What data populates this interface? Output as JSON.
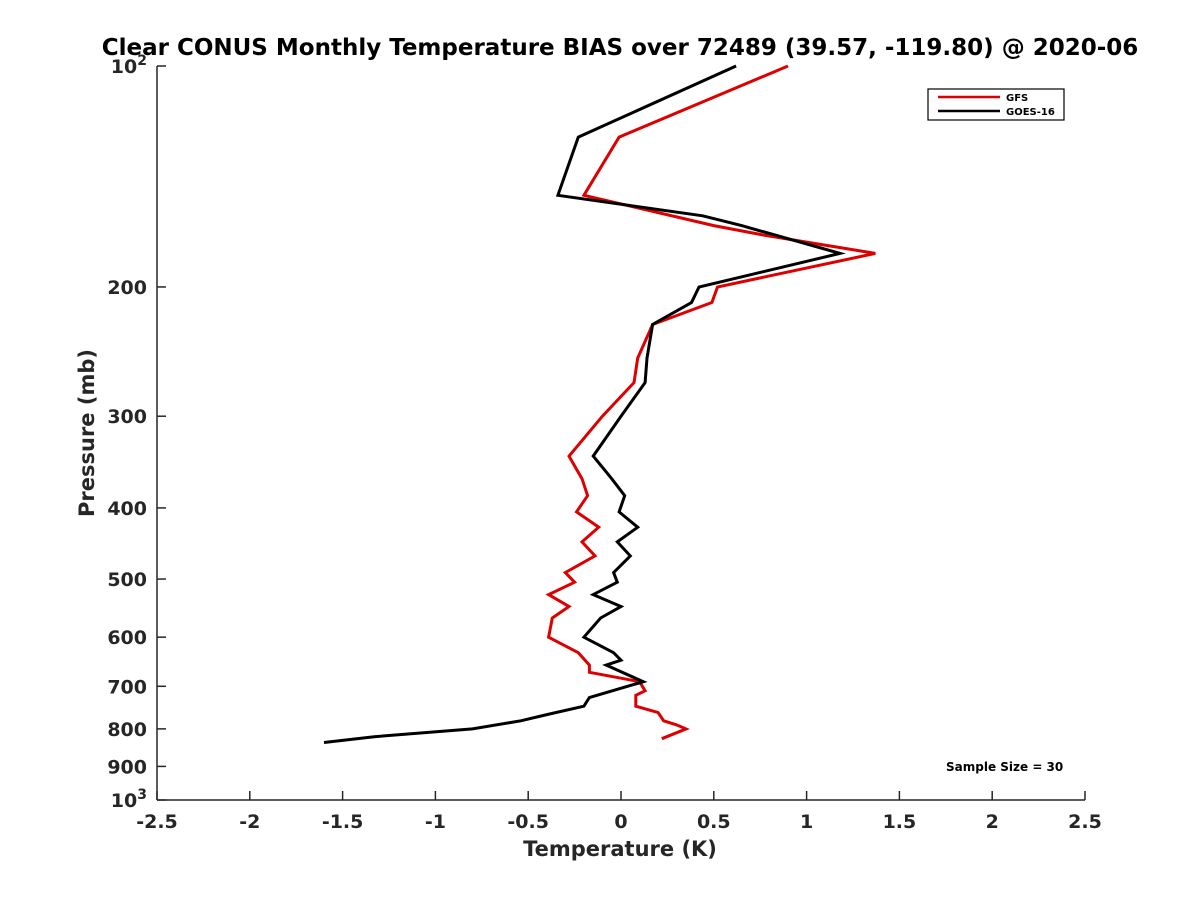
{
  "chart_data": {
    "type": "line",
    "title": "Clear CONUS Monthly Temperature BIAS over 72489 (39.57, -119.80) @ 2020-06",
    "xlabel": "Temperature (K)",
    "ylabel": "Pressure (mb)",
    "xlim": [
      -2.5,
      2.5
    ],
    "ylim": [
      100,
      1000
    ],
    "y_scale": "log",
    "y_reversed": true,
    "x_ticks": [
      "-2.5",
      "-2",
      "-1.5",
      "-1",
      "-0.5",
      "0",
      "0.5",
      "1",
      "1.5",
      "2",
      "2.5"
    ],
    "x_tick_values": [
      -2.5,
      -2,
      -1.5,
      -1,
      -0.5,
      0,
      0.5,
      1,
      1.5,
      2,
      2.5
    ],
    "y_ticks": [
      {
        "value": 100,
        "base": "10",
        "exp": "2"
      },
      {
        "value": 200,
        "label": "200"
      },
      {
        "value": 300,
        "label": "300"
      },
      {
        "value": 400,
        "label": "400"
      },
      {
        "value": 500,
        "label": "500"
      },
      {
        "value": 600,
        "label": "600"
      },
      {
        "value": 700,
        "label": "700"
      },
      {
        "value": 800,
        "label": "800"
      },
      {
        "value": 900,
        "label": "900"
      },
      {
        "value": 1000,
        "base": "10",
        "exp": "3"
      }
    ],
    "legend_position": "top-right",
    "annotation": "Sample Size = 30",
    "series": [
      {
        "name": "GFS",
        "color": "#dd0000",
        "points": [
          [
            0.9,
            100
          ],
          [
            -0.01,
            125
          ],
          [
            -0.2,
            150
          ],
          [
            0.5,
            165
          ],
          [
            0.77,
            170
          ],
          [
            1.37,
            180
          ],
          [
            0.52,
            200
          ],
          [
            0.49,
            210
          ],
          [
            0.17,
            225
          ],
          [
            0.09,
            250
          ],
          [
            0.07,
            270
          ],
          [
            -0.1,
            300
          ],
          [
            -0.28,
            340
          ],
          [
            -0.21,
            365
          ],
          [
            -0.18,
            385
          ],
          [
            -0.24,
            405
          ],
          [
            -0.12,
            425
          ],
          [
            -0.21,
            445
          ],
          [
            -0.14,
            465
          ],
          [
            -0.3,
            490
          ],
          [
            -0.25,
            505
          ],
          [
            -0.39,
            525
          ],
          [
            -0.28,
            545
          ],
          [
            -0.37,
            565
          ],
          [
            -0.39,
            600
          ],
          [
            -0.23,
            630
          ],
          [
            -0.17,
            655
          ],
          [
            -0.17,
            670
          ],
          [
            0.1,
            690
          ],
          [
            0.13,
            710
          ],
          [
            0.08,
            720
          ],
          [
            0.08,
            745
          ],
          [
            0.2,
            760
          ],
          [
            0.23,
            780
          ],
          [
            0.3,
            790
          ],
          [
            0.35,
            800
          ],
          [
            0.22,
            825
          ]
        ]
      },
      {
        "name": "GOES-16",
        "color": "#000000",
        "points": [
          [
            0.62,
            100
          ],
          [
            -0.23,
            125
          ],
          [
            -0.34,
            150
          ],
          [
            0.44,
            160
          ],
          [
            0.65,
            165
          ],
          [
            1.18,
            180
          ],
          [
            0.42,
            200
          ],
          [
            0.38,
            210
          ],
          [
            0.17,
            225
          ],
          [
            0.14,
            250
          ],
          [
            0.13,
            270
          ],
          [
            0.0,
            300
          ],
          [
            -0.15,
            340
          ],
          [
            -0.05,
            365
          ],
          [
            0.02,
            385
          ],
          [
            -0.01,
            405
          ],
          [
            0.09,
            425
          ],
          [
            -0.02,
            445
          ],
          [
            0.05,
            465
          ],
          [
            -0.04,
            490
          ],
          [
            -0.02,
            505
          ],
          [
            -0.15,
            525
          ],
          [
            0.0,
            545
          ],
          [
            -0.11,
            565
          ],
          [
            -0.2,
            600
          ],
          [
            -0.04,
            630
          ],
          [
            0.0,
            645
          ],
          [
            -0.08,
            655
          ],
          [
            0.12,
            690
          ],
          [
            -0.17,
            725
          ],
          [
            -0.2,
            745
          ],
          [
            -0.4,
            765
          ],
          [
            -0.54,
            780
          ],
          [
            -0.8,
            800
          ],
          [
            -1.33,
            820
          ],
          [
            -1.6,
            835
          ]
        ]
      }
    ]
  }
}
